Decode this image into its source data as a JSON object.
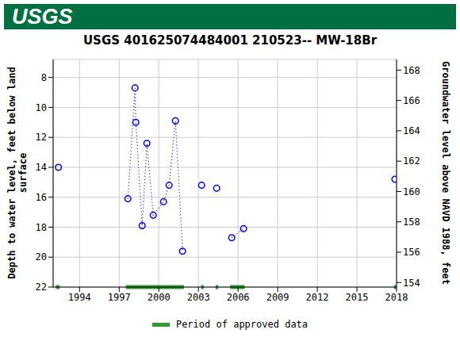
{
  "chart_data": {
    "type": "scatter",
    "logo": "USGS",
    "title": "USGS 401625074484001 210523-- MW-18Br",
    "y_label": "Depth to water level, feet below land surface",
    "y2_label": "Groundwater level above NAVD 1988, feet",
    "xlim": [
      1992,
      2018
    ],
    "xticks": [
      1994,
      1997,
      2000,
      2003,
      2006,
      2009,
      2012,
      2015,
      2018
    ],
    "ylim": [
      22,
      6.8
    ],
    "yticks": [
      8,
      10,
      12,
      14,
      16,
      18,
      20,
      22
    ],
    "y2lim": [
      153.7,
      168.7
    ],
    "y2ticks": [
      154,
      156,
      158,
      160,
      162,
      164,
      166,
      168
    ],
    "grid": true,
    "legend": "bottom",
    "series": [
      {
        "color": "#0000ff",
        "marker": "circle",
        "line_style": "dotted",
        "x": [
          1992.4
        ],
        "values": [
          14.0
        ]
      },
      {
        "color": "#0000ff",
        "marker": "circle",
        "line_style": "dotted",
        "x": [
          1997.66,
          1998.2,
          1998.26,
          1998.74,
          1999.1,
          1999.58,
          2000.36,
          2000.78,
          2001.26,
          2001.8
        ],
        "values": [
          16.1,
          8.7,
          11.0,
          17.9,
          12.4,
          17.2,
          16.3,
          15.2,
          10.9,
          19.6
        ]
      },
      {
        "color": "#0000ff",
        "marker": "circle",
        "line_style": "dotted",
        "x": [
          2003.24
        ],
        "values": [
          15.2
        ]
      },
      {
        "color": "#0000ff",
        "marker": "circle",
        "line_style": "dotted",
        "x": [
          2004.38
        ],
        "values": [
          15.4
        ]
      },
      {
        "color": "#0000ff",
        "marker": "circle",
        "line_style": "dotted",
        "x": [
          2005.52,
          2006.42
        ],
        "values": [
          18.7,
          18.1
        ]
      },
      {
        "color": "#0000ff",
        "marker": "circle",
        "line_style": "dotted",
        "x": [
          2017.88
        ],
        "values": [
          14.8
        ]
      }
    ],
    "approved_periods": {
      "name": "Period of approved data",
      "color": "#339933",
      "ranges": [
        [
          1992.2,
          1992.5
        ],
        [
          1997.5,
          2001.9
        ],
        [
          2003.2,
          2003.4
        ],
        [
          2004.3,
          2004.5
        ],
        [
          2005.4,
          2006.5
        ],
        [
          2017.8,
          2018.0
        ]
      ]
    }
  }
}
